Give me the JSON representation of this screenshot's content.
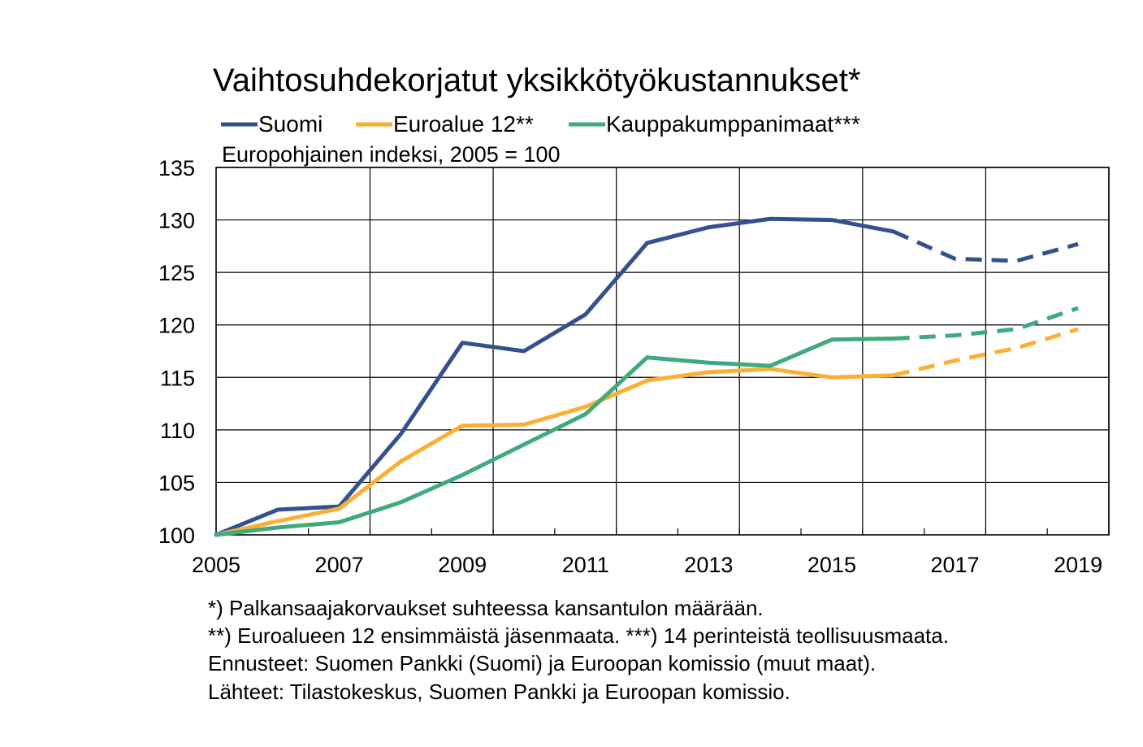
{
  "chart_data": {
    "type": "line",
    "title": "Vaihtosuhdekorjatut yksikkötyökustannukset*",
    "subtitle": "Europohjainen indeksi, 2005 = 100",
    "xlim": [
      2005,
      2019.5
    ],
    "ylim": [
      100,
      135
    ],
    "x_ticks": [
      2005,
      2007,
      2009,
      2011,
      2013,
      2015,
      2017,
      2019
    ],
    "y_ticks": [
      100,
      105,
      110,
      115,
      120,
      125,
      130,
      135
    ],
    "grid": true,
    "legend_position": "top",
    "x": [
      2005,
      2006,
      2007,
      2008,
      2009,
      2010,
      2011,
      2012,
      2013,
      2014,
      2015,
      2016,
      2017,
      2018,
      2019
    ],
    "forecast_from": 2016,
    "series": [
      {
        "name": "Suomi",
        "color": "#34508E",
        "values": [
          100.0,
          102.4,
          102.7,
          109.6,
          118.3,
          117.5,
          121.0,
          127.8,
          129.3,
          130.1,
          130.0,
          128.9,
          126.3,
          126.1,
          127.7
        ]
      },
      {
        "name": "Euroalue 12**",
        "color": "#FBB033",
        "values": [
          100.0,
          101.3,
          102.5,
          107.0,
          110.4,
          110.5,
          112.2,
          114.7,
          115.5,
          115.8,
          115.0,
          115.2,
          116.6,
          117.8,
          119.6
        ]
      },
      {
        "name": "Kauppakumppanimaat***",
        "color": "#3FAA7B",
        "values": [
          100.0,
          100.7,
          101.2,
          103.1,
          105.7,
          108.6,
          111.5,
          116.9,
          116.4,
          116.1,
          118.6,
          118.7,
          119.0,
          119.6,
          121.6
        ]
      }
    ]
  },
  "notes": [
    "*) Palkansaajakorvaukset suhteessa kansantulon määrään.",
    "**) Euroalueen 12 ensimmäistä jäsenmaata. ***) 14 perinteistä teollisuusmaata.",
    "Ennusteet: Suomen Pankki (Suomi) ja Euroopan komissio (muut maat).",
    "Lähteet: Tilastokeskus, Suomen Pankki ja Euroopan komissio."
  ]
}
